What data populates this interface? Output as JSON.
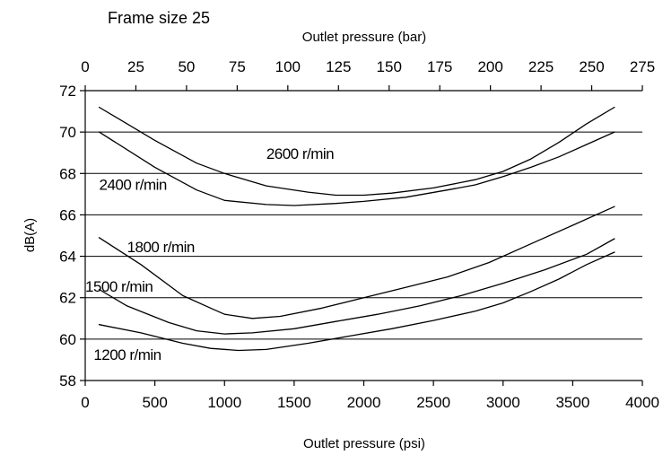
{
  "chart_data": {
    "type": "line",
    "title": "Frame size 25",
    "xlabel": "Outlet pressure (psi)",
    "x2label": "Outlet pressure (bar)",
    "ylabel": "dB(A)",
    "xlim": [
      0,
      4000
    ],
    "x2lim": [
      0,
      275
    ],
    "ylim": [
      58,
      72
    ],
    "x_ticks": [
      0,
      500,
      1000,
      1500,
      2000,
      2500,
      3000,
      3500,
      4000
    ],
    "x2_ticks": [
      0,
      25,
      50,
      75,
      100,
      125,
      150,
      175,
      200,
      225,
      250,
      275
    ],
    "y_ticks": [
      58,
      60,
      62,
      64,
      66,
      68,
      70,
      72
    ],
    "grid": "horizontal",
    "series": [
      {
        "name": "2600 r/min",
        "x": [
          100,
          500,
          800,
          1000,
          1300,
          1600,
          1800,
          2000,
          2200,
          2500,
          2800,
          3000,
          3200,
          3400,
          3600,
          3800
        ],
        "y": [
          71.2,
          69.6,
          68.5,
          68.0,
          67.4,
          67.1,
          66.95,
          66.95,
          67.05,
          67.3,
          67.7,
          68.1,
          68.7,
          69.5,
          70.4,
          71.2
        ]
      },
      {
        "name": "2400 r/min",
        "x": [
          100,
          500,
          800,
          1000,
          1300,
          1500,
          1800,
          2000,
          2300,
          2600,
          2800,
          3000,
          3200,
          3400,
          3600,
          3800
        ],
        "y": [
          70.0,
          68.3,
          67.2,
          66.7,
          66.5,
          66.45,
          66.55,
          66.65,
          66.85,
          67.2,
          67.45,
          67.85,
          68.3,
          68.8,
          69.4,
          70.0
        ]
      },
      {
        "name": "1800 r/min",
        "x": [
          100,
          400,
          700,
          900,
          1000,
          1200,
          1400,
          1700,
          2000,
          2300,
          2600,
          2900,
          3200,
          3500,
          3800
        ],
        "y": [
          64.9,
          63.6,
          62.1,
          61.5,
          61.2,
          61.0,
          61.1,
          61.5,
          62.0,
          62.5,
          63.0,
          63.7,
          64.6,
          65.5,
          66.4
        ]
      },
      {
        "name": "1500 r/min",
        "x": [
          100,
          300,
          600,
          800,
          1000,
          1200,
          1500,
          1800,
          2100,
          2400,
          2700,
          3000,
          3300,
          3600,
          3800
        ],
        "y": [
          62.4,
          61.6,
          60.8,
          60.4,
          60.25,
          60.3,
          60.5,
          60.85,
          61.2,
          61.6,
          62.1,
          62.7,
          63.35,
          64.1,
          64.85
        ]
      },
      {
        "name": "1200 r/min",
        "x": [
          100,
          400,
          700,
          900,
          1100,
          1300,
          1600,
          1900,
          2200,
          2500,
          2800,
          3000,
          3200,
          3400,
          3600,
          3800
        ],
        "y": [
          60.7,
          60.3,
          59.8,
          59.55,
          59.45,
          59.5,
          59.8,
          60.15,
          60.5,
          60.9,
          61.35,
          61.75,
          62.3,
          62.9,
          63.6,
          64.2
        ]
      }
    ],
    "series_labels": [
      {
        "text": "2600 r/min",
        "x": 1300,
        "y": 68.7
      },
      {
        "text": "2400 r/min",
        "x": 100,
        "y": 67.2
      },
      {
        "text": "1800 r/min",
        "x": 300,
        "y": 64.2
      },
      {
        "text": "1500 r/min",
        "x": 0,
        "y": 62.3
      },
      {
        "text": "1200 r/min",
        "x": 60,
        "y": 59.0
      }
    ]
  }
}
